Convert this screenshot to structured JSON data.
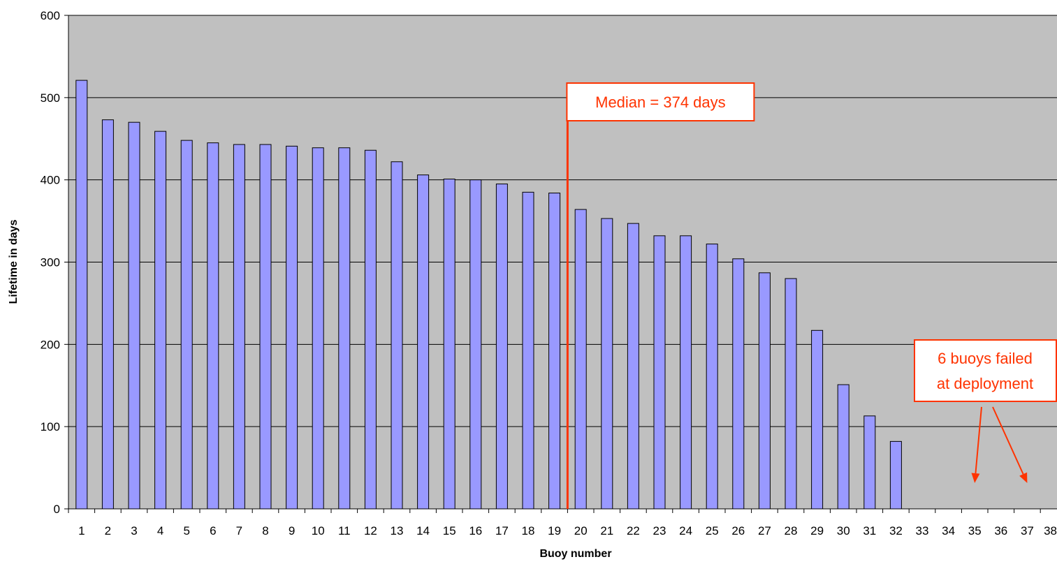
{
  "chart_data": {
    "type": "bar",
    "title": "",
    "xlabel": "Buoy number",
    "ylabel": "Lifetime in days",
    "ylim": [
      0,
      600
    ],
    "yticks": [
      0,
      100,
      200,
      300,
      400,
      500,
      600
    ],
    "grid": true,
    "legend": "none",
    "categories": [
      "1",
      "2",
      "3",
      "4",
      "5",
      "6",
      "7",
      "8",
      "9",
      "10",
      "11",
      "12",
      "13",
      "14",
      "15",
      "16",
      "17",
      "18",
      "19",
      "20",
      "21",
      "22",
      "23",
      "24",
      "25",
      "26",
      "27",
      "28",
      "29",
      "30",
      "31",
      "32",
      "33",
      "34",
      "35",
      "36",
      "37",
      "38"
    ],
    "values": [
      521,
      473,
      470,
      459,
      448,
      445,
      443,
      443,
      441,
      439,
      439,
      436,
      422,
      406,
      401,
      400,
      395,
      385,
      384,
      364,
      353,
      347,
      332,
      332,
      322,
      304,
      287,
      280,
      217,
      151,
      113,
      82,
      0,
      0,
      0,
      0,
      0,
      0
    ],
    "colors": {
      "plot_background": "#c0c0c0",
      "bar_fill": "#9999ff",
      "bar_stroke": "#000000",
      "annotation": "#ff3300"
    },
    "median": {
      "value": 374,
      "position_category": "20",
      "label": "Median = 374 days"
    },
    "annotations": [
      {
        "lines": [
          "6 buoys failed",
          "at deployment"
        ],
        "arrow_targets": [
          "35",
          "37"
        ]
      }
    ]
  }
}
